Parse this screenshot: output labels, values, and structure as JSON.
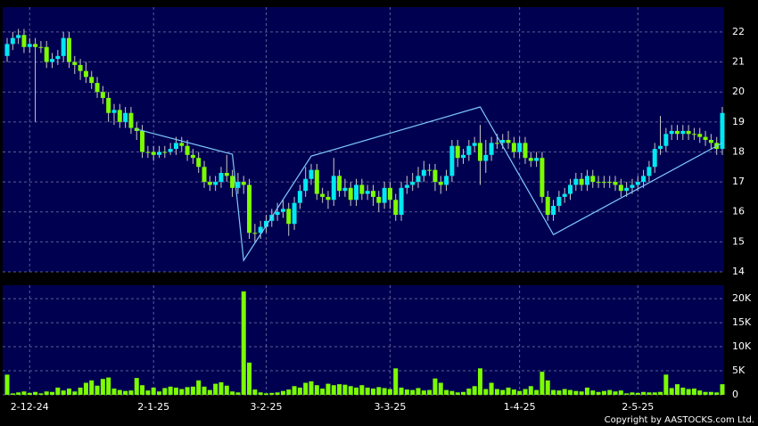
{
  "chart_data": [
    {
      "type": "candlestick",
      "up_color": "#00e8f0",
      "down_color": "#7cfc00",
      "wick_color": "#c8c8c8",
      "grid": true,
      "ylim": [
        14,
        22.83
      ],
      "yticks": [
        14,
        15,
        16,
        17,
        18,
        19,
        20,
        21,
        22
      ],
      "categories": [
        null,
        null,
        null,
        null,
        "2-12-24",
        null,
        null,
        null,
        null,
        null,
        null,
        null,
        null,
        null,
        null,
        null,
        null,
        null,
        null,
        null,
        null,
        null,
        null,
        null,
        null,
        null,
        "2-1-25",
        null,
        null,
        null,
        null,
        null,
        null,
        null,
        null,
        null,
        null,
        null,
        null,
        null,
        null,
        null,
        null,
        null,
        null,
        null,
        "3-2-25",
        null,
        null,
        null,
        null,
        null,
        null,
        null,
        null,
        null,
        null,
        null,
        null,
        null,
        null,
        null,
        null,
        null,
        null,
        null,
        null,
        null,
        "3-3-25",
        null,
        null,
        null,
        null,
        null,
        null,
        null,
        null,
        null,
        null,
        null,
        null,
        null,
        null,
        null,
        null,
        null,
        null,
        null,
        null,
        null,
        null,
        "1-4-25",
        null,
        null,
        null,
        null,
        null,
        null,
        null,
        null,
        null,
        null,
        null,
        null,
        null,
        null,
        null,
        null,
        null,
        null,
        null,
        null,
        "2-5-25",
        null,
        null,
        null,
        null,
        null,
        null,
        null,
        null,
        null,
        null,
        null,
        null,
        null,
        null,
        null
      ],
      "open": [
        21.2,
        21.6,
        21.8,
        21.9,
        21.5,
        21.6,
        21.5,
        21.5,
        21.0,
        21.1,
        21.2,
        21.8,
        21.0,
        20.9,
        20.7,
        20.5,
        20.3,
        20.0,
        19.8,
        19.3,
        19.4,
        19.0,
        19.3,
        18.8,
        18.7,
        18.0,
        18.0,
        17.9,
        18.0,
        18.0,
        18.1,
        18.3,
        18.2,
        17.9,
        17.8,
        17.5,
        17.0,
        16.9,
        17.0,
        17.3,
        17.2,
        16.8,
        17.0,
        16.9,
        15.3,
        15.3,
        15.5,
        15.7,
        15.9,
        16.0,
        16.1,
        15.6,
        16.3,
        16.7,
        17.1,
        17.4,
        16.6,
        16.5,
        16.4,
        17.2,
        16.7,
        16.8,
        16.4,
        16.9,
        16.6,
        16.7,
        16.5,
        16.3,
        16.8,
        16.4,
        15.9,
        16.8,
        16.9,
        17.0,
        17.2,
        17.4,
        17.4,
        17.0,
        16.9,
        17.2,
        18.2,
        17.8,
        17.9,
        18.2,
        18.3,
        17.7,
        17.9,
        18.3,
        18.3,
        18.4,
        18.3,
        18.0,
        18.3,
        17.8,
        17.7,
        17.8,
        16.5,
        15.9,
        16.2,
        16.5,
        16.6,
        16.9,
        17.1,
        16.9,
        17.2,
        17.0,
        17.0,
        17.0,
        17.0,
        16.9,
        16.7,
        16.8,
        16.9,
        17.0,
        17.2,
        17.5,
        18.1,
        18.2,
        18.6,
        18.7,
        18.6,
        18.7,
        18.6,
        18.6,
        18.5,
        18.4,
        18.3,
        18.1
      ],
      "high": [
        21.8,
        22.0,
        22.1,
        22.1,
        21.8,
        21.8,
        21.7,
        21.7,
        21.3,
        21.4,
        22.0,
        22.0,
        21.2,
        21.1,
        21.0,
        20.7,
        20.5,
        20.2,
        20.0,
        19.6,
        19.6,
        19.5,
        19.5,
        19.0,
        18.9,
        18.2,
        18.2,
        18.2,
        18.2,
        18.3,
        18.5,
        18.5,
        18.4,
        18.1,
        18.0,
        17.7,
        17.2,
        17.2,
        17.5,
        17.9,
        17.4,
        17.3,
        17.2,
        17.1,
        15.6,
        15.7,
        15.9,
        16.1,
        16.3,
        16.4,
        16.3,
        16.5,
        16.9,
        17.5,
        17.6,
        17.6,
        16.8,
        16.7,
        17.8,
        17.4,
        17.1,
        17.0,
        17.1,
        17.1,
        16.9,
        16.9,
        16.7,
        17.0,
        17.0,
        16.6,
        17.0,
        17.2,
        17.3,
        17.5,
        17.7,
        17.6,
        17.6,
        17.2,
        17.4,
        18.4,
        18.4,
        18.1,
        18.4,
        18.5,
        18.9,
        18.4,
        18.5,
        18.6,
        18.6,
        18.7,
        18.5,
        18.5,
        18.5,
        18.0,
        18.0,
        18.0,
        16.7,
        16.4,
        16.7,
        16.8,
        17.1,
        17.3,
        17.3,
        17.4,
        17.4,
        17.2,
        17.2,
        17.2,
        17.2,
        17.1,
        17.0,
        17.1,
        17.2,
        17.4,
        17.7,
        18.3,
        19.2,
        18.8,
        18.9,
        18.9,
        18.9,
        18.9,
        18.8,
        18.8,
        18.7,
        18.6,
        18.5,
        19.5
      ],
      "low": [
        21.0,
        21.4,
        21.6,
        21.3,
        21.3,
        19.0,
        21.3,
        20.8,
        20.8,
        20.9,
        21.0,
        20.8,
        20.6,
        20.4,
        20.3,
        20.1,
        19.8,
        19.6,
        19.0,
        18.9,
        18.8,
        18.8,
        18.6,
        18.4,
        17.8,
        17.8,
        17.7,
        17.8,
        17.8,
        17.9,
        17.9,
        18.0,
        17.7,
        17.6,
        17.3,
        16.8,
        16.7,
        16.7,
        16.8,
        17.0,
        16.5,
        16.6,
        16.6,
        15.1,
        15.0,
        15.1,
        15.3,
        15.5,
        15.7,
        15.8,
        15.2,
        15.4,
        16.1,
        16.5,
        16.9,
        16.4,
        16.3,
        16.1,
        16.2,
        16.5,
        16.5,
        16.2,
        16.2,
        16.4,
        16.4,
        16.2,
        16.0,
        16.1,
        16.1,
        15.7,
        15.7,
        16.6,
        16.7,
        16.8,
        17.0,
        17.2,
        16.7,
        16.6,
        16.7,
        17.0,
        17.5,
        17.6,
        17.7,
        18.0,
        16.9,
        17.3,
        17.7,
        18.1,
        18.1,
        18.1,
        17.8,
        17.8,
        17.6,
        17.5,
        17.5,
        16.3,
        15.7,
        15.7,
        16.0,
        16.3,
        16.4,
        16.7,
        16.7,
        16.7,
        16.8,
        16.8,
        16.8,
        16.8,
        16.7,
        16.5,
        16.5,
        16.6,
        16.7,
        16.8,
        17.0,
        17.3,
        17.9,
        18.0,
        18.4,
        18.4,
        18.4,
        18.4,
        18.4,
        18.3,
        18.2,
        18.1,
        17.9,
        17.9
      ],
      "close": [
        21.6,
        21.8,
        21.9,
        21.5,
        21.6,
        21.5,
        21.5,
        21.0,
        21.1,
        21.2,
        21.8,
        21.0,
        20.9,
        20.7,
        20.5,
        20.3,
        20.0,
        19.8,
        19.3,
        19.4,
        19.0,
        19.3,
        18.8,
        18.7,
        18.0,
        18.0,
        17.9,
        18.0,
        18.0,
        18.1,
        18.3,
        18.2,
        17.9,
        17.8,
        17.5,
        17.0,
        16.9,
        17.0,
        17.3,
        17.2,
        16.8,
        17.0,
        16.9,
        15.3,
        15.3,
        15.5,
        15.7,
        15.9,
        16.0,
        16.1,
        15.6,
        16.3,
        16.7,
        17.1,
        17.4,
        16.6,
        16.5,
        16.4,
        17.2,
        16.7,
        16.8,
        16.4,
        16.9,
        16.6,
        16.7,
        16.5,
        16.3,
        16.8,
        16.4,
        15.9,
        16.8,
        16.9,
        17.0,
        17.2,
        17.4,
        17.4,
        17.0,
        16.9,
        17.2,
        18.2,
        17.8,
        17.9,
        18.2,
        18.3,
        17.7,
        17.9,
        18.3,
        18.3,
        18.4,
        18.3,
        18.0,
        18.3,
        17.8,
        17.7,
        17.8,
        16.5,
        15.9,
        16.2,
        16.5,
        16.6,
        16.9,
        17.1,
        16.9,
        17.2,
        17.0,
        17.0,
        17.0,
        17.0,
        16.9,
        16.7,
        16.8,
        16.9,
        17.0,
        17.2,
        17.5,
        18.1,
        18.2,
        18.6,
        18.7,
        18.6,
        18.7,
        18.6,
        18.6,
        18.5,
        18.4,
        18.3,
        18.1,
        19.3
      ],
      "zigzag": {
        "color": "#7ec8ff",
        "x": [
          23,
          40,
          42,
          54,
          84,
          97,
          127
        ],
        "values": [
          18.76,
          17.92,
          14.38,
          17.86,
          19.5,
          15.24,
          18.3
        ]
      }
    },
    {
      "type": "bar",
      "color": "#7cfc00",
      "grid": true,
      "ylim": [
        0,
        22800
      ],
      "yticks": [
        0,
        {
          "value": 5000,
          "label": "5K"
        },
        {
          "value": 10000,
          "label": "10K"
        },
        {
          "value": 15000,
          "label": "15K"
        },
        {
          "value": 20000,
          "label": "20K"
        }
      ],
      "values": [
        4200,
        300,
        500,
        700,
        400,
        600,
        300,
        700,
        600,
        1500,
        900,
        1300,
        700,
        1500,
        2500,
        3000,
        1900,
        3300,
        3600,
        1300,
        1000,
        800,
        900,
        3500,
        2000,
        900,
        1500,
        700,
        1400,
        1700,
        1500,
        1200,
        1600,
        1700,
        3000,
        1700,
        1000,
        2300,
        2600,
        1900,
        700,
        500,
        21500,
        6700,
        1100,
        500,
        300,
        400,
        500,
        800,
        1100,
        1800,
        1500,
        2500,
        2800,
        2000,
        1300,
        2300,
        2000,
        2200,
        2100,
        1800,
        1500,
        2000,
        1500,
        1300,
        1600,
        1400,
        1200,
        5500,
        1500,
        1100,
        1000,
        1400,
        900,
        1000,
        3400,
        2500,
        1000,
        800,
        500,
        600,
        1300,
        1800,
        5500,
        1200,
        2500,
        1200,
        1000,
        1500,
        1100,
        800,
        1200,
        1800,
        1000,
        4800,
        3000,
        1000,
        900,
        1200,
        1000,
        800,
        700,
        1500,
        900,
        600,
        800,
        1000,
        700,
        900,
        300,
        500,
        400,
        600,
        500,
        500,
        600,
        4200,
        1400,
        2200,
        1500,
        1200,
        1300,
        900,
        600,
        600,
        500,
        2200
      ]
    }
  ],
  "copyright": "Copyright by AASTOCKS.com Ltd."
}
